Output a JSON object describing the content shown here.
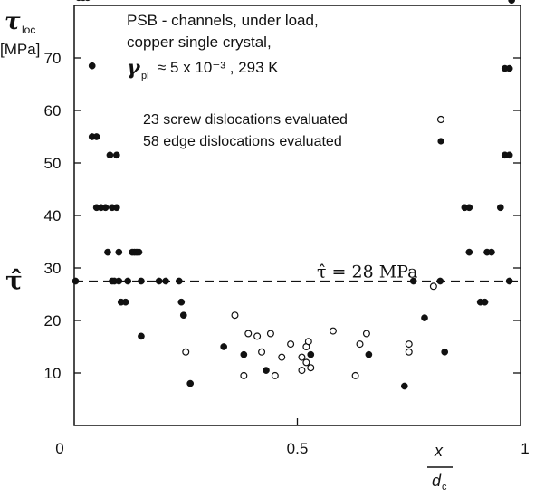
{
  "chart_data": {
    "type": "scatter",
    "ylabel": {
      "symbol": "τ",
      "subscript": "loc",
      "unit": "[MPa]"
    },
    "xlabel": {
      "numerator": "x",
      "denominator": "d",
      "denominator_subscript": "c"
    },
    "xlim": [
      0,
      1
    ],
    "ylim": [
      0,
      80
    ],
    "x_ticks": [
      {
        "value": 0,
        "label": "0"
      },
      {
        "value": 0.5,
        "label": "0.5"
      },
      {
        "value": 1,
        "label": "1"
      }
    ],
    "y_ticks": [
      {
        "value": 10,
        "label": "10"
      },
      {
        "value": 20,
        "label": "20"
      },
      {
        "value": 30,
        "label": "30"
      },
      {
        "value": 40,
        "label": "40"
      },
      {
        "value": 50,
        "label": "50"
      },
      {
        "value": 60,
        "label": "60"
      },
      {
        "value": 70,
        "label": "70"
      }
    ],
    "legend_placement": "top-center",
    "legend_lines": [
      "PSB - channels,  under load,",
      "copper single crystal,",
      "≈ 5 x 10⁻³ ,  293 K"
    ],
    "gamma_symbol": "γ",
    "gamma_subscript": "pl",
    "reference_line": {
      "y": 27.5,
      "label": "τ̂ = 28 MPa",
      "left_label": "τ̂"
    },
    "series": [
      {
        "name": "23 screw dislocations evaluated",
        "marker": "open-circle",
        "points": [
          [
            0.25,
            14.0
          ],
          [
            0.36,
            21.0
          ],
          [
            0.38,
            9.5
          ],
          [
            0.39,
            17.5
          ],
          [
            0.41,
            17.0
          ],
          [
            0.42,
            14.0
          ],
          [
            0.44,
            17.5
          ],
          [
            0.45,
            9.5
          ],
          [
            0.465,
            13.0
          ],
          [
            0.485,
            15.5
          ],
          [
            0.51,
            13.0
          ],
          [
            0.51,
            10.5
          ],
          [
            0.52,
            15.0
          ],
          [
            0.52,
            12.0
          ],
          [
            0.525,
            16.0
          ],
          [
            0.53,
            11.0
          ],
          [
            0.58,
            18.0
          ],
          [
            0.63,
            9.5
          ],
          [
            0.64,
            15.5
          ],
          [
            0.655,
            17.5
          ],
          [
            0.75,
            15.5
          ],
          [
            0.75,
            14.0
          ],
          [
            0.805,
            26.5
          ]
        ]
      },
      {
        "name": "58 edge dislocations evaluated",
        "marker": "filled-circle",
        "points": [
          [
            0.003,
            27.5
          ],
          [
            0.01,
            81.5
          ],
          [
            0.02,
            81.5
          ],
          [
            0.03,
            81.5
          ],
          [
            0.04,
            68.5
          ],
          [
            0.04,
            55.0
          ],
          [
            0.05,
            55.0
          ],
          [
            0.05,
            41.5
          ],
          [
            0.06,
            41.5
          ],
          [
            0.07,
            41.5
          ],
          [
            0.075,
            33.0
          ],
          [
            0.08,
            51.5
          ],
          [
            0.085,
            41.5
          ],
          [
            0.085,
            27.5
          ],
          [
            0.09,
            27.5
          ],
          [
            0.095,
            51.5
          ],
          [
            0.095,
            41.5
          ],
          [
            0.1,
            33.0
          ],
          [
            0.1,
            27.5
          ],
          [
            0.105,
            23.5
          ],
          [
            0.115,
            23.5
          ],
          [
            0.12,
            27.5
          ],
          [
            0.13,
            33.0
          ],
          [
            0.135,
            33.0
          ],
          [
            0.14,
            33.0
          ],
          [
            0.145,
            33.0
          ],
          [
            0.15,
            27.5
          ],
          [
            0.15,
            17.0
          ],
          [
            0.19,
            27.5
          ],
          [
            0.205,
            27.5
          ],
          [
            0.235,
            27.5
          ],
          [
            0.24,
            23.5
          ],
          [
            0.245,
            21.0
          ],
          [
            0.26,
            8.0
          ],
          [
            0.335,
            15.0
          ],
          [
            0.38,
            13.5
          ],
          [
            0.43,
            10.5
          ],
          [
            0.53,
            13.5
          ],
          [
            0.66,
            13.5
          ],
          [
            0.74,
            7.5
          ],
          [
            0.76,
            27.5
          ],
          [
            0.785,
            20.5
          ],
          [
            0.82,
            27.5
          ],
          [
            0.83,
            14.0
          ],
          [
            0.875,
            41.5
          ],
          [
            0.885,
            41.5
          ],
          [
            0.885,
            33.0
          ],
          [
            0.91,
            23.5
          ],
          [
            0.92,
            23.5
          ],
          [
            0.925,
            33.0
          ],
          [
            0.935,
            33.0
          ],
          [
            0.955,
            41.5
          ],
          [
            0.965,
            51.5
          ],
          [
            0.965,
            68.0
          ],
          [
            0.975,
            51.5
          ],
          [
            0.975,
            68.0
          ],
          [
            0.975,
            27.5
          ],
          [
            0.98,
            81.0
          ]
        ]
      }
    ]
  }
}
